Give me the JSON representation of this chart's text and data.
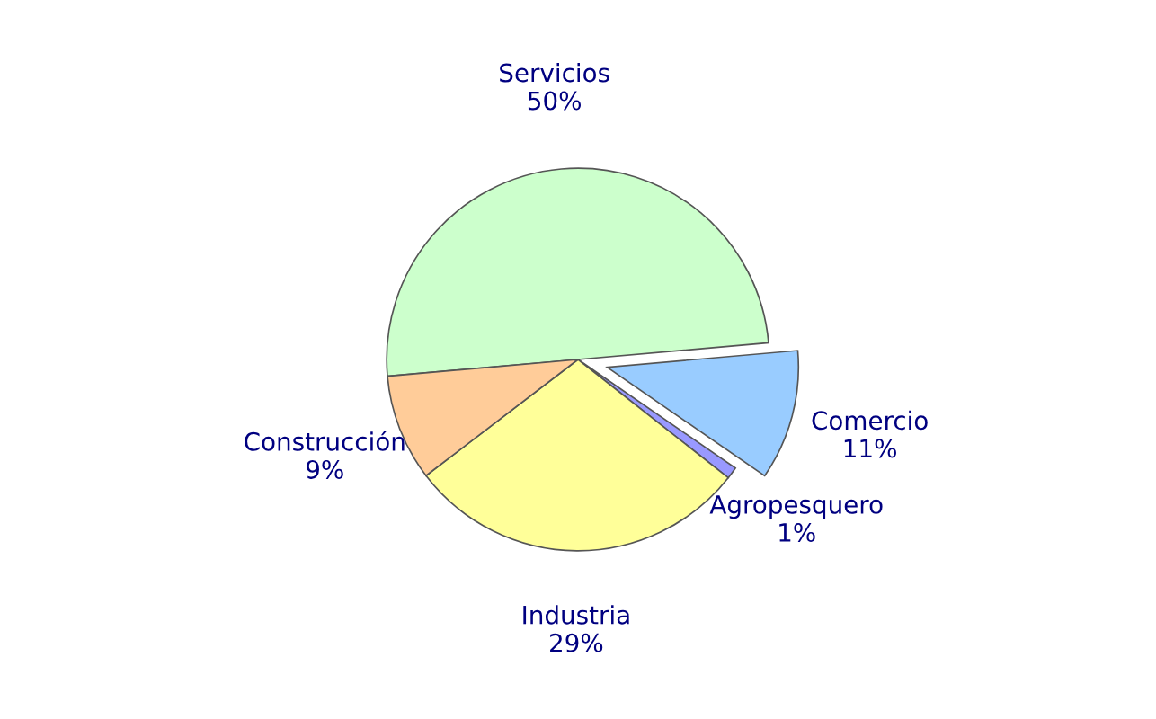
{
  "chart_data": {
    "type": "pie",
    "categories": [
      "Servicios",
      "Comercio",
      "Agropesquero",
      "Industria",
      "Construcción"
    ],
    "values": [
      50,
      11,
      1,
      29,
      9
    ],
    "value_labels": [
      "50%",
      "11%",
      "1%",
      "29%",
      "9%"
    ],
    "colors": [
      "#ccffcc",
      "#99ccff",
      "#9999ff",
      "#ffff99",
      "#ffcc99"
    ],
    "legend": false
  }
}
